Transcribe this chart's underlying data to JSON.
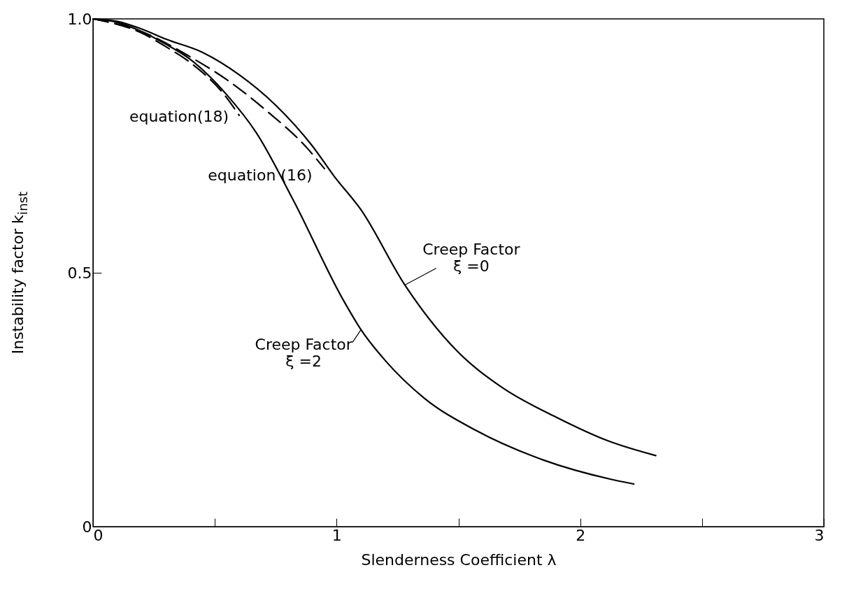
{
  "chart_data": {
    "type": "line",
    "xlabel": "Slenderness Coefficient  λ",
    "ylabel": "Instability factor  k$_{inst}$",
    "xlim": [
      0,
      3
    ],
    "xticks": [
      0,
      {
        "value": 0.5,
        "label": null
      },
      1,
      {
        "value": 1.5,
        "label": null
      },
      2,
      {
        "value": 2.5,
        "label": null
      },
      3
    ],
    "ylim": [
      0,
      1
    ],
    "yticks": [
      0,
      0.5,
      {
        "value": 1,
        "label": "1.0"
      }
    ],
    "grid": false,
    "marker": "none",
    "series": [
      {
        "name": "Creep Factor\nξ =0",
        "color": "#000000",
        "line_style": "solid",
        "x": [
          0,
          0.1,
          0.2,
          0.3,
          0.45,
          0.6,
          0.75,
          0.9,
          0.99,
          1.1,
          1.28,
          1.49,
          1.68,
          1.9,
          2.12,
          2.31
        ],
        "values": [
          1,
          0.995,
          0.98,
          0.96,
          0.934,
          0.89,
          0.83,
          0.75,
          0.69,
          0.624,
          0.476,
          0.348,
          0.274,
          0.216,
          0.168,
          0.14
        ]
      },
      {
        "name": "Creep Factor\nξ =2",
        "color": "#000000",
        "line_style": "solid",
        "x": [
          0,
          0.1,
          0.2,
          0.3,
          0.4,
          0.55,
          0.67,
          0.82,
          1.03,
          1.1,
          1.2,
          1.36,
          1.57,
          1.85,
          2.12,
          2.22
        ],
        "values": [
          1,
          0.993,
          0.975,
          0.95,
          0.92,
          0.85,
          0.776,
          0.645,
          0.444,
          0.388,
          0.327,
          0.253,
          0.19,
          0.131,
          0.094,
          0.084
        ]
      },
      {
        "name": "equation (16)",
        "color": "#000000",
        "line_style": "dashed",
        "x": [
          0,
          0.2,
          0.4,
          0.55,
          0.71,
          0.88,
          0.95
        ],
        "values": [
          1,
          0.975,
          0.925,
          0.88,
          0.82,
          0.745,
          0.705
        ]
      },
      {
        "name": "equation(18)",
        "color": "#000000",
        "line_style": "dashed",
        "x": [
          0,
          0.2,
          0.3,
          0.41,
          0.54,
          0.6
        ],
        "values": [
          1,
          0.972,
          0.945,
          0.91,
          0.85,
          0.81
        ]
      }
    ]
  }
}
